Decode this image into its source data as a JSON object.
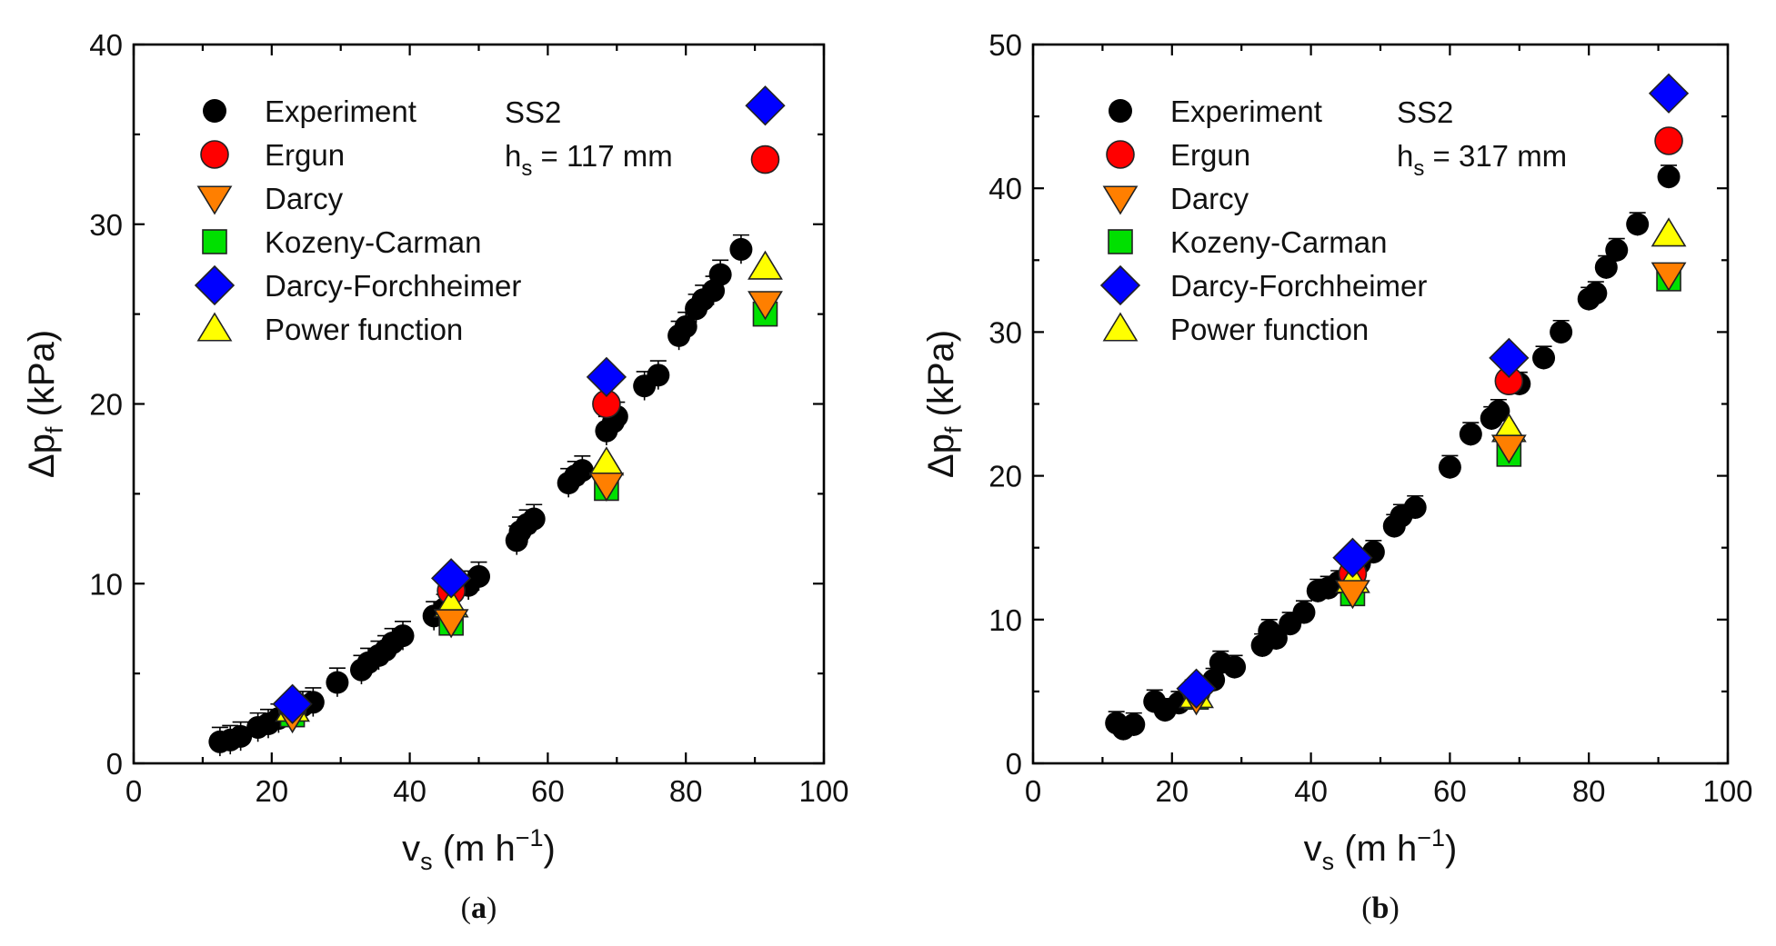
{
  "colors": {
    "experiment": "#000000",
    "ergun": "#ff0000",
    "darcy": "#ff7f00",
    "kozeny": "#00e000",
    "forchheimer": "#0000ff",
    "power": "#ffff00"
  },
  "chart_data": [
    {
      "type": "scatter",
      "panel_label": "(a)",
      "panel_letter": "a",
      "xlabel": {
        "main": "v",
        "sub": "s",
        "unit": " (m h",
        "sup": "−1",
        "close": ")"
      },
      "ylabel": {
        "main": "Δp",
        "sub": "f",
        "unit": " (kPa)"
      },
      "xlim": [
        0,
        100
      ],
      "ylim": [
        0,
        40
      ],
      "xticks": [
        0,
        20,
        40,
        60,
        80,
        100
      ],
      "yticks": [
        0,
        10,
        20,
        30,
        40
      ],
      "annotation": {
        "line1": "SS2",
        "line2_main": "h",
        "line2_sub": "s",
        "line2_rest": " = 117 mm"
      },
      "legend": [
        "Experiment",
        "Ergun",
        "Darcy",
        "Kozeny-Carman",
        "Darcy-Forchheimer",
        "Power function"
      ],
      "series": [
        {
          "name": "Experiment",
          "marker": "circle",
          "color_key": "experiment",
          "x": [
            12.5,
            14,
            15.5,
            18,
            19.5,
            21,
            23,
            24.5,
            26,
            29.5,
            33,
            34,
            35.5,
            36.5,
            37.5,
            39,
            43.5,
            45,
            48.5,
            50,
            55.5,
            56,
            57,
            58,
            63,
            64,
            65,
            68.5,
            69.5,
            70,
            74,
            76,
            79,
            80,
            81.5,
            82.5,
            84,
            85,
            88
          ],
          "y": [
            1.2,
            1.3,
            1.5,
            2.0,
            2.2,
            2.5,
            3.0,
            3.2,
            3.4,
            4.5,
            5.2,
            5.6,
            6.0,
            6.3,
            6.7,
            7.1,
            8.2,
            8.6,
            9.9,
            10.4,
            12.4,
            12.9,
            13.3,
            13.6,
            15.6,
            16.0,
            16.3,
            18.5,
            19.0,
            19.3,
            21.0,
            21.6,
            23.8,
            24.3,
            25.3,
            25.8,
            26.3,
            27.2,
            28.6
          ],
          "err": 0.8
        },
        {
          "name": "Ergun",
          "marker": "circle",
          "color_key": "ergun",
          "x": [
            23,
            46,
            68.5,
            91.5
          ],
          "y": [
            3.0,
            9.6,
            20.0,
            33.6
          ]
        },
        {
          "name": "Kozeny-Carman",
          "marker": "square",
          "color_key": "kozeny",
          "x": [
            23,
            46,
            68.5,
            91.5
          ],
          "y": [
            2.7,
            7.8,
            15.3,
            25.0
          ]
        },
        {
          "name": "Power function",
          "marker": "triangle-up",
          "color_key": "power",
          "x": [
            23,
            46,
            68.5,
            91.5
          ],
          "y": [
            3.0,
            8.8,
            16.7,
            27.6
          ]
        },
        {
          "name": "Darcy",
          "marker": "triangle-down",
          "color_key": "darcy",
          "x": [
            23,
            46,
            68.5,
            91.5
          ],
          "y": [
            2.6,
            7.9,
            15.5,
            25.6
          ]
        },
        {
          "name": "Darcy-Forchheimer",
          "marker": "diamond",
          "color_key": "forchheimer",
          "x": [
            23,
            46,
            68.5,
            91.5
          ],
          "y": [
            3.3,
            10.3,
            21.5,
            36.6
          ]
        }
      ]
    },
    {
      "type": "scatter",
      "panel_label": "(b)",
      "panel_letter": "b",
      "xlabel": {
        "main": "v",
        "sub": "s",
        "unit": " (m h",
        "sup": "−1",
        "close": ")"
      },
      "ylabel": {
        "main": "Δp",
        "sub": "f",
        "unit": " (kPa)"
      },
      "xlim": [
        0,
        100
      ],
      "ylim": [
        0,
        50
      ],
      "xticks": [
        0,
        20,
        40,
        60,
        80,
        100
      ],
      "yticks": [
        0,
        10,
        20,
        30,
        40,
        50
      ],
      "annotation": {
        "line1": "SS2",
        "line2_main": "h",
        "line2_sub": "s",
        "line2_rest": " = 317 mm"
      },
      "legend": [
        "Experiment",
        "Ergun",
        "Darcy",
        "Kozeny-Carman",
        "Darcy-Forchheimer",
        "Power function"
      ],
      "series": [
        {
          "name": "Experiment",
          "marker": "circle",
          "color_key": "experiment",
          "x": [
            12,
            13,
            14.5,
            17.5,
            19,
            21,
            23,
            26,
            27,
            29,
            33,
            34,
            35,
            37,
            39,
            41,
            42.5,
            44,
            47,
            49,
            52,
            53,
            55,
            60,
            63,
            66,
            67,
            70,
            73.5,
            76,
            80,
            81,
            82.5,
            84,
            87,
            91.5
          ],
          "y": [
            2.8,
            2.4,
            2.7,
            4.3,
            3.7,
            4.2,
            5.0,
            5.8,
            7.0,
            6.7,
            8.2,
            9.2,
            8.7,
            9.7,
            10.5,
            12.0,
            12.2,
            12.6,
            13.9,
            14.7,
            16.5,
            17.2,
            17.8,
            20.6,
            22.9,
            24.0,
            24.5,
            26.4,
            28.2,
            30.0,
            32.3,
            32.7,
            34.5,
            35.7,
            37.5,
            40.8
          ],
          "err": 0.8
        },
        {
          "name": "Ergun",
          "marker": "circle",
          "color_key": "ergun",
          "x": [
            23.5,
            46,
            68.5,
            91.5
          ],
          "y": [
            5.0,
            13.2,
            26.6,
            43.3
          ]
        },
        {
          "name": "Kozeny-Carman",
          "marker": "square",
          "color_key": "kozeny",
          "x": [
            23.5,
            46,
            68.5,
            91.5
          ],
          "y": [
            4.6,
            11.8,
            21.5,
            33.7
          ]
        },
        {
          "name": "Power function",
          "marker": "triangle-up",
          "color_key": "power",
          "x": [
            23.5,
            46,
            68.5,
            91.5
          ],
          "y": [
            4.7,
            12.7,
            23.2,
            36.8
          ]
        },
        {
          "name": "Darcy",
          "marker": "triangle-down",
          "color_key": "darcy",
          "x": [
            23.5,
            46,
            68.5,
            91.5
          ],
          "y": [
            4.5,
            11.9,
            22.0,
            34.0
          ]
        },
        {
          "name": "Darcy-Forchheimer",
          "marker": "diamond",
          "color_key": "forchheimer",
          "x": [
            23.5,
            46,
            68.5,
            91.5
          ],
          "y": [
            5.2,
            14.3,
            28.2,
            46.6
          ]
        }
      ]
    }
  ]
}
